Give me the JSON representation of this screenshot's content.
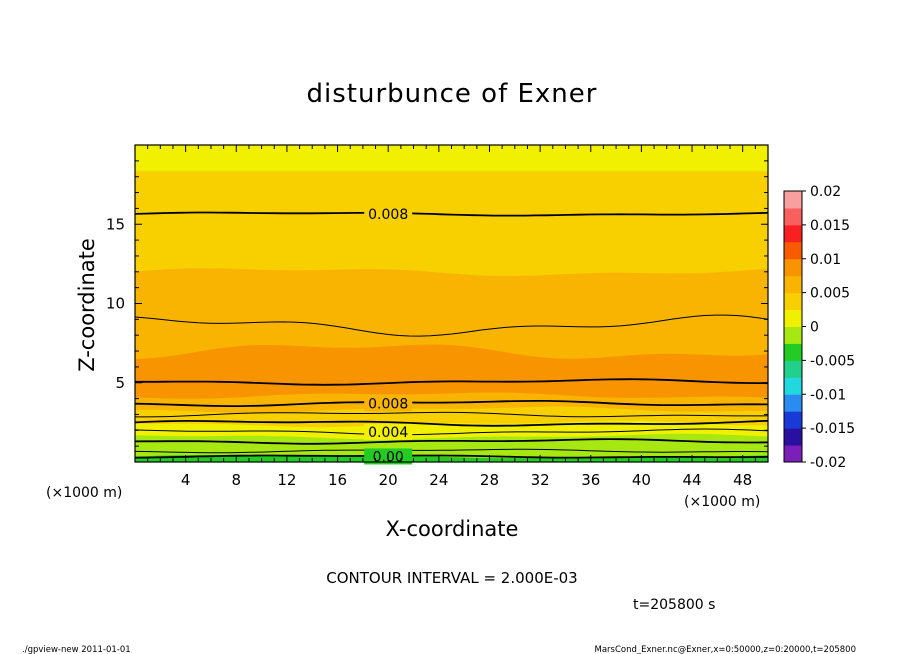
{
  "chart_data": {
    "type": "heatmap",
    "title": "disturbunce of Exner",
    "xlabel": "X-coordinate",
    "ylabel": "Z-coordinate",
    "x_unit": "(×1000 m)",
    "y_unit": "(×1000 m)",
    "xlim": [
      0,
      50
    ],
    "ylim": [
      0,
      20
    ],
    "x_ticks": [
      "4",
      "8",
      "12",
      "16",
      "20",
      "24",
      "28",
      "32",
      "36",
      "40",
      "44",
      "48"
    ],
    "y_ticks": [
      "5",
      "10",
      "15"
    ],
    "colorbar_ticks": [
      "0.02",
      "0.015",
      "0.01",
      "0.005",
      "0",
      "-0.005",
      "-0.01",
      "-0.015",
      "-0.02"
    ],
    "colorbar_range": [
      -0.02,
      0.02
    ],
    "colors": [
      "#7a1fb8",
      "#2a10a0",
      "#1a3ad8",
      "#2a8cf0",
      "#22d8e0",
      "#20d08c",
      "#22cc22",
      "#a8e812",
      "#f0f000",
      "#f8d000",
      "#f8b400",
      "#f89400",
      "#f85a00",
      "#f82020",
      "#f86060",
      "#f8a0a0"
    ],
    "contour_interval": "CONTOUR INTERVAL = 2.000E-03",
    "contour_labels": [
      "0.008",
      "0.008",
      "0.004",
      "0.00"
    ],
    "time_label": "t=205800 s",
    "footer_left": "./gpview-new   2011-01-01",
    "footer_right": "MarsCond_Exner.nc@Exner,x=0:50000,z=0:20000,t=205800"
  }
}
